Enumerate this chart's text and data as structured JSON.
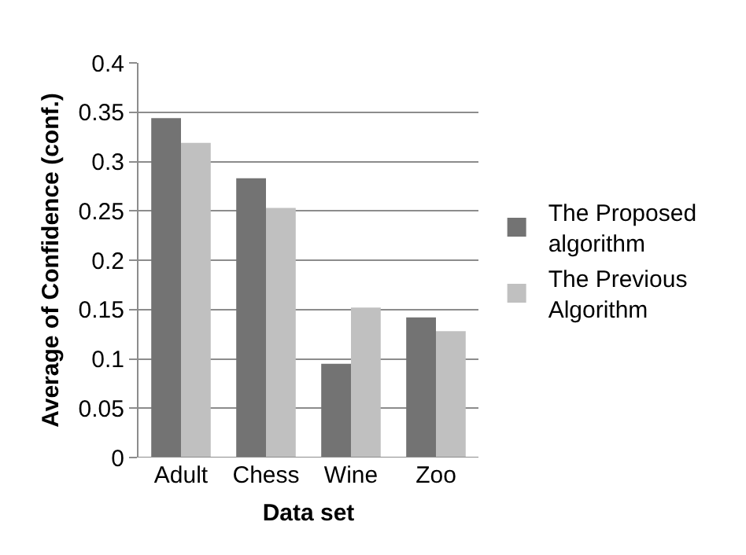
{
  "chart_data": {
    "type": "bar",
    "xlabel": "Data set",
    "ylabel": "Average of Confidence (conf.)",
    "categories": [
      "Adult",
      "Chess",
      "Wine",
      "Zoo"
    ],
    "series": [
      {
        "name": "The Proposed algorithm",
        "color": "#737373",
        "values": [
          0.344,
          0.283,
          0.095,
          0.142
        ]
      },
      {
        "name": "The Previous Algorithm",
        "color": "#c0c0c0",
        "values": [
          0.319,
          0.253,
          0.152,
          0.128
        ]
      }
    ],
    "ylim": [
      0,
      0.4
    ],
    "yticks": [
      0,
      0.05,
      0.1,
      0.15,
      0.2,
      0.25,
      0.3,
      0.35,
      0.4
    ],
    "grid": "y",
    "legend": "right"
  }
}
